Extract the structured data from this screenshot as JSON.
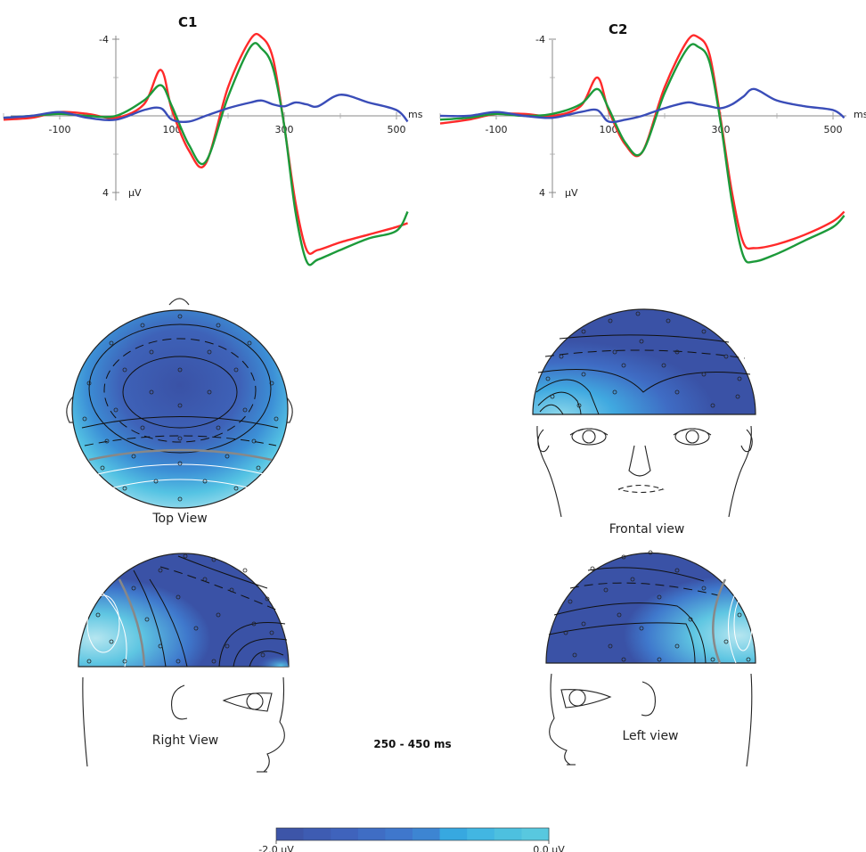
{
  "chart_data": [
    {
      "type": "line",
      "title": "C1",
      "x_unit_label": "ms",
      "y_unit_label": "µV",
      "x_ticks": [
        "-100",
        "100",
        "300",
        "500"
      ],
      "y_ticks": [
        "-4",
        "4"
      ],
      "xlim": [
        -200,
        520
      ],
      "ylim": [
        -4.5,
        8
      ],
      "y_inverted": true,
      "colors": [
        "#ff2a2a",
        "#1c9a3a",
        "#3a4db8"
      ],
      "series": [
        {
          "color": "#ff2a2a",
          "x": [
            -200,
            -150,
            -100,
            -50,
            0,
            50,
            80,
            100,
            130,
            160,
            200,
            240,
            260,
            280,
            300,
            320,
            340,
            360,
            400,
            450,
            500,
            520
          ],
          "y": [
            0.2,
            0.1,
            -0.2,
            -0.1,
            0.1,
            -0.6,
            -2.4,
            -0.3,
            1.8,
            2.5,
            -1.5,
            -4.0,
            -4.1,
            -3.0,
            0.5,
            4.5,
            7.0,
            7.0,
            6.6,
            6.2,
            5.8,
            5.6
          ]
        },
        {
          "color": "#1c9a3a",
          "x": [
            -200,
            -150,
            -100,
            -50,
            0,
            50,
            80,
            100,
            130,
            160,
            200,
            240,
            260,
            280,
            300,
            320,
            340,
            360,
            400,
            450,
            500,
            520
          ],
          "y": [
            0.1,
            0.0,
            -0.1,
            0.0,
            0.0,
            -0.8,
            -1.6,
            -0.5,
            1.5,
            2.4,
            -1.0,
            -3.6,
            -3.5,
            -2.5,
            0.5,
            5.0,
            7.6,
            7.5,
            7.0,
            6.4,
            6.0,
            5.0
          ]
        },
        {
          "color": "#3a4db8",
          "x": [
            -200,
            -150,
            -100,
            -50,
            0,
            50,
            80,
            100,
            130,
            160,
            200,
            240,
            260,
            280,
            300,
            320,
            340,
            360,
            400,
            450,
            500,
            520
          ],
          "y": [
            0.1,
            0.0,
            -0.2,
            0.1,
            0.2,
            -0.3,
            -0.4,
            0.2,
            0.3,
            0.0,
            -0.4,
            -0.7,
            -0.8,
            -0.6,
            -0.5,
            -0.7,
            -0.6,
            -0.5,
            -1.1,
            -0.7,
            -0.3,
            0.3
          ]
        }
      ]
    },
    {
      "type": "line",
      "title": "C2",
      "x_unit_label": "ms",
      "y_unit_label": "µV",
      "x_ticks": [
        "-100",
        "100",
        "300",
        "500"
      ],
      "y_ticks": [
        "-4",
        "4"
      ],
      "xlim": [
        -200,
        520
      ],
      "ylim": [
        -4.5,
        8
      ],
      "y_inverted": true,
      "colors": [
        "#ff2a2a",
        "#1c9a3a",
        "#3a4db8"
      ],
      "series": [
        {
          "color": "#ff2a2a",
          "x": [
            -200,
            -150,
            -100,
            -50,
            0,
            50,
            80,
            100,
            130,
            160,
            200,
            240,
            260,
            280,
            300,
            320,
            340,
            360,
            400,
            450,
            500,
            520
          ],
          "y": [
            0.4,
            0.2,
            -0.1,
            -0.1,
            0.0,
            -0.5,
            -2.0,
            -0.3,
            1.5,
            1.9,
            -1.5,
            -3.9,
            -4.1,
            -3.2,
            0.2,
            4.0,
            6.6,
            6.9,
            6.7,
            6.2,
            5.5,
            5.0
          ]
        },
        {
          "color": "#1c9a3a",
          "x": [
            -200,
            -150,
            -100,
            -50,
            0,
            50,
            80,
            100,
            130,
            160,
            200,
            240,
            260,
            280,
            300,
            320,
            340,
            360,
            400,
            450,
            500,
            520
          ],
          "y": [
            0.2,
            0.1,
            -0.1,
            0.0,
            -0.1,
            -0.6,
            -1.4,
            -0.4,
            1.4,
            1.9,
            -1.2,
            -3.5,
            -3.6,
            -2.8,
            0.4,
            4.5,
            7.3,
            7.6,
            7.2,
            6.5,
            5.8,
            5.2
          ]
        },
        {
          "color": "#3a4db8",
          "x": [
            -200,
            -150,
            -100,
            -50,
            0,
            50,
            80,
            100,
            130,
            160,
            200,
            240,
            260,
            280,
            300,
            320,
            340,
            360,
            400,
            450,
            500,
            520
          ],
          "y": [
            0.0,
            0.0,
            -0.2,
            0.0,
            0.1,
            -0.2,
            -0.3,
            0.3,
            0.2,
            0.0,
            -0.4,
            -0.7,
            -0.6,
            -0.5,
            -0.4,
            -0.6,
            -1.0,
            -1.4,
            -0.8,
            -0.5,
            -0.3,
            0.1
          ]
        }
      ]
    }
  ],
  "maps": {
    "top": {
      "label": "Top View"
    },
    "frontal": {
      "label": "Frontal view"
    },
    "right": {
      "label": "Right View"
    },
    "left": {
      "label": "Left view"
    }
  },
  "time_window": "250 - 450 ms",
  "colorbar": {
    "min_label": "-2.0 µV",
    "max_label": "0.0 µV",
    "colors": [
      "#3d55a8",
      "#3e5cb2",
      "#3f63bc",
      "#3f6dc4",
      "#3f77cc",
      "#3d85d2",
      "#37a8e0",
      "#42b6e2",
      "#4dc0df",
      "#58c8df"
    ]
  },
  "map_colors": {
    "deep": "#3a52a6",
    "mid": "#3f6cc4",
    "light": "#38a6de",
    "pale": "#7fd0e6"
  }
}
